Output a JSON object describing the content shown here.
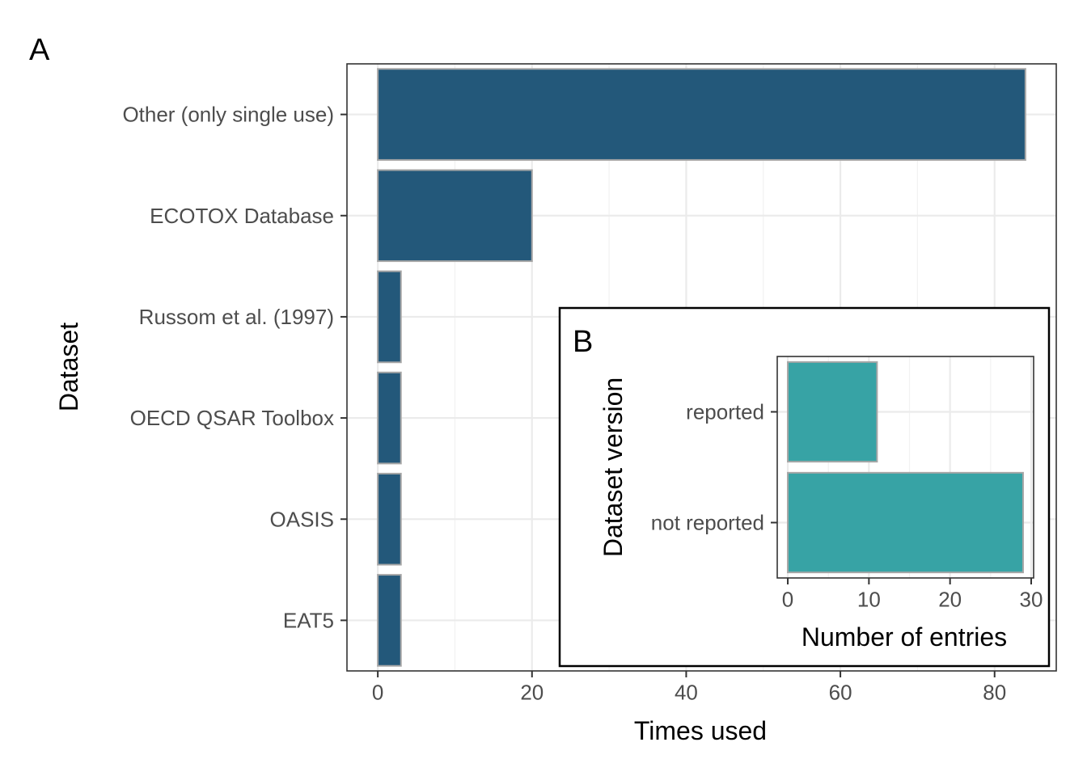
{
  "chart_data": [
    {
      "panel": "A",
      "type": "bar",
      "orientation": "horizontal",
      "categories": [
        "Other (only single use)",
        "ECOTOX Database",
        "Russom et al. (1997)",
        "OECD QSAR Toolbox",
        "OASIS",
        "EAT5"
      ],
      "values": [
        84,
        20,
        3,
        3,
        3,
        3
      ],
      "xlabel": "Times used",
      "ylabel": "Dataset",
      "xlim": [
        -4,
        88
      ],
      "xticks": [
        0,
        20,
        40,
        60,
        80
      ],
      "grid": true,
      "bar_color": "#23587a",
      "bar_outline": "#a6a6a6"
    },
    {
      "panel": "B",
      "type": "bar",
      "orientation": "horizontal",
      "categories": [
        "reported",
        "not reported"
      ],
      "values": [
        11,
        29
      ],
      "xlabel": "Number of entries",
      "ylabel": "Dataset version",
      "xlim": [
        -1.3,
        30.3
      ],
      "xticks": [
        0,
        10,
        20,
        30
      ],
      "grid": true,
      "bar_color": "#37a3a5",
      "bar_outline": "#a6a6a6"
    }
  ]
}
